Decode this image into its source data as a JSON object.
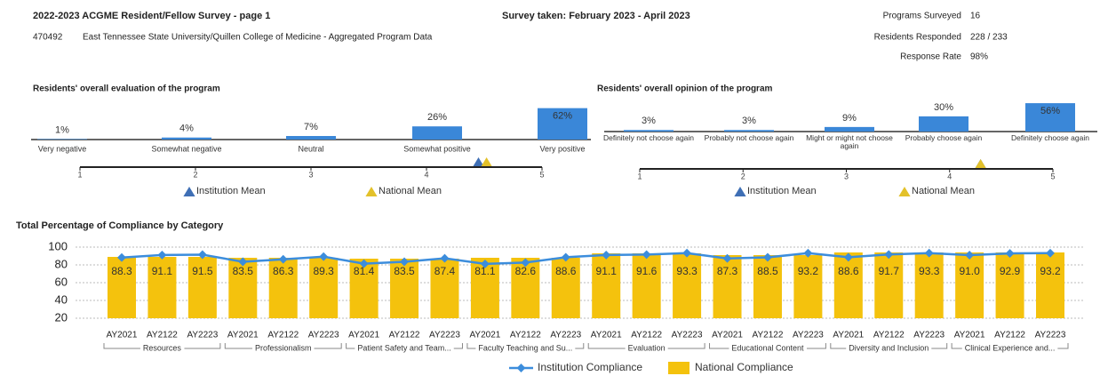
{
  "header": {
    "title": "2022-2023 ACGME Resident/Fellow Survey - page 1",
    "survey_taken": "Survey taken: February 2023 - April 2023",
    "program_id": "470492",
    "program_name": "East Tennessee State University/Quillen College of Medicine - Aggregated Program Data",
    "stats": [
      {
        "label": "Programs Surveyed",
        "value": 16
      },
      {
        "label": "Residents Responded",
        "value": "228 / 233"
      },
      {
        "label": "Response Rate",
        "value": "98%"
      }
    ]
  },
  "chart_data": [
    {
      "type": "bar",
      "title": "Residents' overall evaluation of the program",
      "color": "#3a87d8",
      "categories": [
        "Very negative",
        "Somewhat negative",
        "Neutral",
        "Somewhat positive",
        "Very positive"
      ],
      "values": [
        1,
        4,
        7,
        26,
        62
      ],
      "value_labels": [
        "1%",
        "4%",
        "7%",
        "26%",
        "62%"
      ],
      "xlim": [
        1,
        5
      ],
      "xticks": [
        1,
        2,
        3,
        4,
        5
      ],
      "means": [
        {
          "name": "Institution Mean",
          "value": 4.45,
          "color": "#3f6fb5"
        },
        {
          "name": "National Mean",
          "value": 4.52,
          "color": "#e3c12a"
        }
      ]
    },
    {
      "type": "bar",
      "title": "Residents' overall opinion of the program",
      "color": "#3a87d8",
      "categories": [
        "Definitely not choose again",
        "Probably not choose again",
        "Might or might not choose again",
        "Probably choose again",
        "Definitely choose again"
      ],
      "values": [
        3,
        3,
        9,
        30,
        56
      ],
      "value_labels": [
        "3%",
        "3%",
        "9%",
        "30%",
        "56%"
      ],
      "xlim": [
        1,
        5
      ],
      "xticks": [
        1,
        2,
        3,
        4,
        5
      ],
      "means": [
        {
          "name": "Institution Mean",
          "value": 4.3,
          "color": "#3f6fb5"
        },
        {
          "name": "National Mean",
          "value": 4.3,
          "color": "#e3c12a"
        }
      ]
    },
    {
      "type": "combo",
      "title": "Total Percentage of Compliance by Category",
      "categories": [
        "AY2021",
        "AY2122",
        "AY2223",
        "AY2021",
        "AY2122",
        "AY2223",
        "AY2021",
        "AY2122",
        "AY2223",
        "AY2021",
        "AY2122",
        "AY2223",
        "AY2021",
        "AY2122",
        "AY2223",
        "AY2021",
        "AY2122",
        "AY2223",
        "AY2021",
        "AY2122",
        "AY2223",
        "AY2021",
        "AY2122",
        "AY2223"
      ],
      "groups": [
        "Resources",
        "Professionalism",
        "Patient Safety and Team...",
        "Faculty Teaching and Su...",
        "Evaluation",
        "Educational Content",
        "Diversity and Inclusion",
        "Clinical Experience and..."
      ],
      "ylim": [
        20,
        100
      ],
      "yticks": [
        20,
        40,
        60,
        80,
        100
      ],
      "grid": true,
      "series": [
        {
          "name": "Institution Compliance",
          "kind": "line",
          "color": "#3c8ddc",
          "values": [
            88.3,
            91.1,
            91.5,
            83.5,
            86.3,
            89.3,
            81.4,
            83.5,
            87.4,
            81.1,
            82.6,
            88.6,
            91.1,
            91.6,
            93.3,
            87.3,
            88.5,
            93.2,
            88.6,
            91.7,
            93.3,
            91.0,
            92.9,
            93.2
          ],
          "value_labels": [
            "88.3",
            "91.1",
            "91.5",
            "83.5",
            "86.3",
            "89.3",
            "81.4",
            "83.5",
            "87.4",
            "81.1",
            "82.6",
            "88.6",
            "91.1",
            "91.6",
            "93.3",
            "87.3",
            "88.5",
            "93.2",
            "88.6",
            "91.7",
            "93.3",
            "91.0",
            "92.9",
            "93.2"
          ]
        },
        {
          "name": "National Compliance",
          "kind": "bar",
          "color": "#f4c20d",
          "values": [
            89,
            89,
            89,
            88,
            88,
            88,
            87,
            87,
            87,
            88,
            88,
            88,
            93,
            93,
            93,
            91,
            91,
            91,
            94,
            94,
            94,
            94,
            94,
            94
          ]
        }
      ]
    }
  ]
}
